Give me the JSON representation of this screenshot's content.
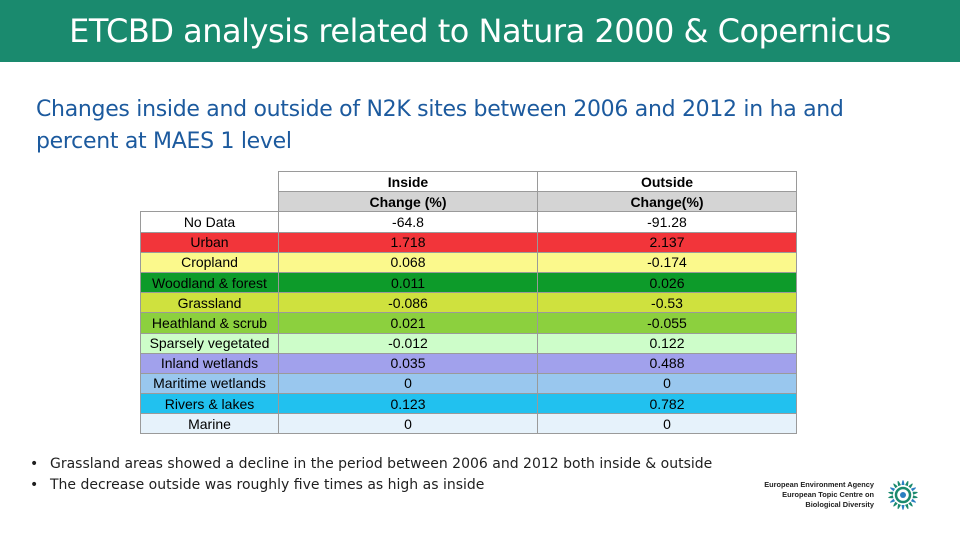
{
  "header": {
    "title": "ETCBD analysis related to Natura 2000 & Copernicus",
    "background_color": "#1a8a6e"
  },
  "subtitle": "Changes inside and outside of N2K sites between 2006 and 2012 in ha and percent at MAES 1 level",
  "table": {
    "group_headers": [
      "Inside",
      "Outside"
    ],
    "sub_headers": [
      "Change (%)",
      "Change(%)"
    ],
    "rows": [
      {
        "label": "No Data",
        "inside": "-64.8",
        "outside": "-91.28",
        "color": "#ffffff"
      },
      {
        "label": "Urban",
        "inside": "1.718",
        "outside": "2.137",
        "color": "#f2353a"
      },
      {
        "label": "Cropland",
        "inside": "0.068",
        "outside": "-0.174",
        "color": "#fbf98c"
      },
      {
        "label": "Woodland & forest",
        "inside": "0.011",
        "outside": "0.026",
        "color": "#0d9b2a"
      },
      {
        "label": "Grassland",
        "inside": "-0.086",
        "outside": "-0.53",
        "color": "#cfe13e"
      },
      {
        "label": "Heathland & scrub",
        "inside": "0.021",
        "outside": "-0.055",
        "color": "#8cd03e"
      },
      {
        "label": "Sparsely vegetated",
        "inside": "-0.012",
        "outside": "0.122",
        "color": "#cdfdc9"
      },
      {
        "label": "Inland wetlands",
        "inside": "0.035",
        "outside": "0.488",
        "color": "#a1a1ec"
      },
      {
        "label": "Maritime wetlands",
        "inside": "0",
        "outside": "0",
        "color": "#99c7ee"
      },
      {
        "label": "Rivers & lakes",
        "inside": "0.123",
        "outside": "0.782",
        "color": "#21c1ef"
      },
      {
        "label": "Marine",
        "inside": "0",
        "outside": "0",
        "color": "#e6f2fb"
      }
    ]
  },
  "bullets": [
    "Grassland areas showed a decline in the period between 2006 and 2012 both inside & outside",
    "The decrease outside was roughly five times as high as inside"
  ],
  "logo": {
    "line1": "European Environment Agency",
    "line2": "European Topic Centre on",
    "line3": "Biological Diversity",
    "icon": "etc-biodiversity-logo-icon"
  }
}
